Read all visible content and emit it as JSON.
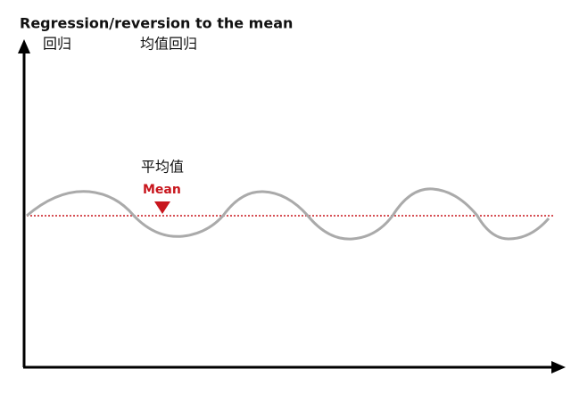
{
  "header": {
    "title": "Regression/reversion to the mean"
  },
  "labels": {
    "regression_cn": "回归",
    "mean_reversion_cn": "均值回归",
    "mean_cn": "平均值",
    "mean_en": "Mean"
  }
}
